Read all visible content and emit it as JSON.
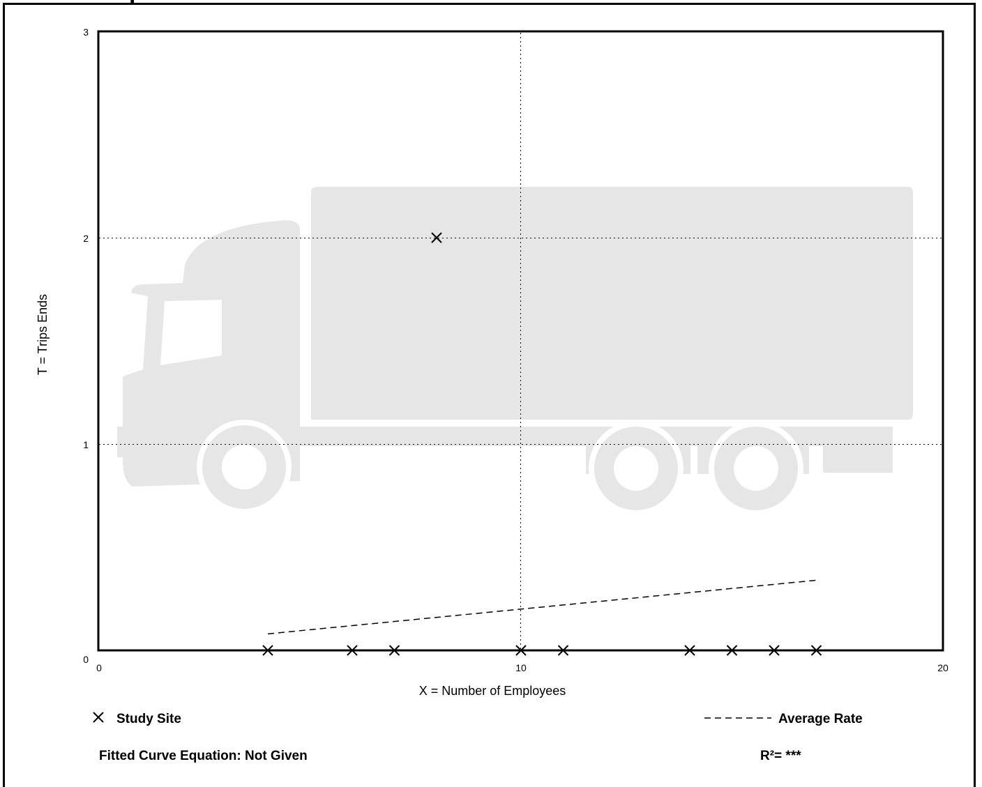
{
  "chart_data": {
    "type": "scatter",
    "xlabel": "X = Number of Employees",
    "ylabel": "T = Trips Ends",
    "xlim": [
      0,
      20
    ],
    "ylim": [
      0,
      3
    ],
    "x_ticks": [
      0,
      10,
      20
    ],
    "y_ticks": [
      0,
      1,
      2,
      3
    ],
    "grid": "dotted lines at x=10, y=1, y=2",
    "series": [
      {
        "name": "Study Site",
        "marker": "x",
        "points": [
          {
            "x": 4,
            "y": 0
          },
          {
            "x": 6,
            "y": 0
          },
          {
            "x": 7,
            "y": 0
          },
          {
            "x": 8,
            "y": 2
          },
          {
            "x": 10,
            "y": 0
          },
          {
            "x": 11,
            "y": 0
          },
          {
            "x": 14,
            "y": 0
          },
          {
            "x": 15,
            "y": 0
          },
          {
            "x": 16,
            "y": 0
          },
          {
            "x": 17,
            "y": 0
          }
        ]
      },
      {
        "name": "Average Rate",
        "style": "dashed",
        "points": [
          {
            "x": 4,
            "y": 0.08
          },
          {
            "x": 17,
            "y": 0.34
          }
        ]
      }
    ]
  },
  "legend": {
    "study_site": "Study Site",
    "average_rate": "Average Rate"
  },
  "footer": {
    "fitted_curve": "Fitted Curve Equation: Not Given",
    "r_squared": "R²= ***"
  },
  "title_fragment": "p",
  "colors": {
    "background": "#ffffff",
    "watermark": "#e6e6e6",
    "ink": "#000000"
  },
  "icons": {
    "watermark": "truck-icon",
    "marker": "x-marker-icon"
  }
}
